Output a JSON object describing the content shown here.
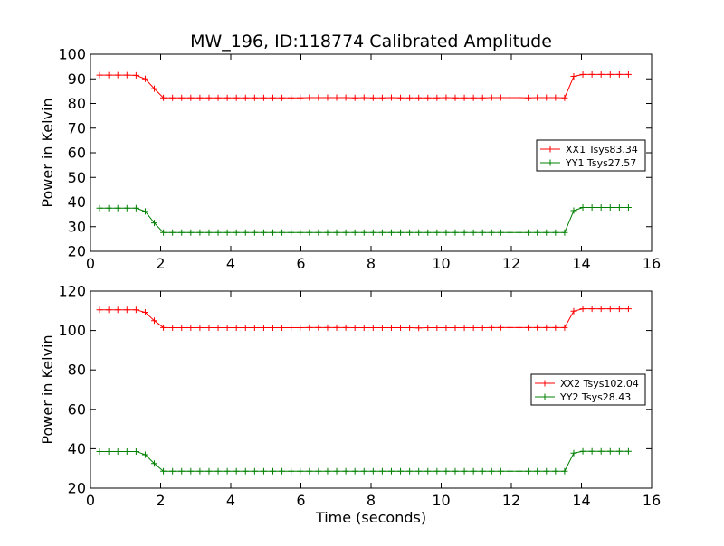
{
  "figure": {
    "title": "MW_196, ID:118774 Calibrated Amplitude"
  },
  "chart_data": [
    {
      "type": "line",
      "title": "MW_196, ID:118774 Calibrated Amplitude",
      "xlabel": "",
      "ylabel": "Power in Kelvin",
      "xlim": [
        0,
        16
      ],
      "ylim": [
        20,
        100
      ],
      "xticks": [
        "0",
        "2",
        "4",
        "6",
        "8",
        "10",
        "12",
        "14",
        "16"
      ],
      "yticks": [
        "20",
        "30",
        "40",
        "50",
        "60",
        "70",
        "80",
        "90",
        "100"
      ],
      "grid": false,
      "legend": "center-right",
      "marker": "plus",
      "x": [
        0.26,
        0.52,
        0.78,
        1.04,
        1.3,
        1.56,
        1.82,
        2.08,
        2.34,
        2.6,
        2.86,
        3.12,
        3.38,
        3.64,
        3.9,
        4.16,
        4.42,
        4.68,
        4.94,
        5.2,
        5.46,
        5.72,
        5.98,
        6.24,
        6.5,
        6.76,
        7.02,
        7.28,
        7.54,
        7.8,
        8.06,
        8.32,
        8.58,
        8.84,
        9.1,
        9.36,
        9.62,
        9.88,
        10.14,
        10.4,
        10.66,
        10.92,
        11.18,
        11.44,
        11.7,
        11.96,
        12.22,
        12.48,
        12.74,
        13.0,
        13.26,
        13.52,
        13.78,
        14.04,
        14.3,
        14.56,
        14.82,
        15.08,
        15.34
      ],
      "series": [
        {
          "name": "XX1 Tsys83.34",
          "color": "#ff0000",
          "values": [
            91.5,
            91.5,
            91.5,
            91.5,
            91.4,
            90.0,
            86.0,
            82.3,
            82.3,
            82.3,
            82.3,
            82.3,
            82.3,
            82.3,
            82.3,
            82.3,
            82.3,
            82.3,
            82.3,
            82.3,
            82.3,
            82.3,
            82.3,
            82.4,
            82.4,
            82.4,
            82.4,
            82.4,
            82.3,
            82.4,
            82.3,
            82.3,
            82.4,
            82.3,
            82.3,
            82.3,
            82.3,
            82.3,
            82.4,
            82.3,
            82.3,
            82.3,
            82.3,
            82.4,
            82.4,
            82.4,
            82.4,
            82.3,
            82.4,
            82.4,
            82.4,
            82.3,
            91.0,
            91.8,
            91.8,
            91.8,
            91.8,
            91.8,
            91.8
          ]
        },
        {
          "name": "YY1 Tsys27.57",
          "color": "#008000",
          "values": [
            37.5,
            37.5,
            37.5,
            37.5,
            37.5,
            36.2,
            31.5,
            27.6,
            27.6,
            27.6,
            27.6,
            27.6,
            27.6,
            27.6,
            27.6,
            27.6,
            27.6,
            27.6,
            27.6,
            27.6,
            27.6,
            27.6,
            27.6,
            27.6,
            27.6,
            27.6,
            27.6,
            27.6,
            27.6,
            27.6,
            27.6,
            27.6,
            27.6,
            27.6,
            27.6,
            27.6,
            27.6,
            27.6,
            27.6,
            27.6,
            27.6,
            27.6,
            27.6,
            27.6,
            27.6,
            27.6,
            27.6,
            27.6,
            27.6,
            27.6,
            27.6,
            27.6,
            36.5,
            37.8,
            37.8,
            37.8,
            37.8,
            37.8,
            37.8
          ]
        }
      ]
    },
    {
      "type": "line",
      "title": "",
      "xlabel": "Time (seconds)",
      "ylabel": "Power in Kelvin",
      "xlim": [
        0,
        16
      ],
      "ylim": [
        20,
        120
      ],
      "xticks": [
        "0",
        "2",
        "4",
        "6",
        "8",
        "10",
        "12",
        "14",
        "16"
      ],
      "yticks": [
        "20",
        "40",
        "60",
        "80",
        "100",
        "120"
      ],
      "grid": false,
      "legend": "center-right",
      "marker": "plus",
      "x": [
        0.26,
        0.52,
        0.78,
        1.04,
        1.3,
        1.56,
        1.82,
        2.08,
        2.34,
        2.6,
        2.86,
        3.12,
        3.38,
        3.64,
        3.9,
        4.16,
        4.42,
        4.68,
        4.94,
        5.2,
        5.46,
        5.72,
        5.98,
        6.24,
        6.5,
        6.76,
        7.02,
        7.28,
        7.54,
        7.8,
        8.06,
        8.32,
        8.58,
        8.84,
        9.1,
        9.36,
        9.62,
        9.88,
        10.14,
        10.4,
        10.66,
        10.92,
        11.18,
        11.44,
        11.7,
        11.96,
        12.22,
        12.48,
        12.74,
        13.0,
        13.26,
        13.52,
        13.78,
        14.04,
        14.3,
        14.56,
        14.82,
        15.08,
        15.34
      ],
      "series": [
        {
          "name": "XX2 Tsys102.04",
          "color": "#ff0000",
          "values": [
            110.5,
            110.5,
            110.5,
            110.5,
            110.5,
            109.2,
            105.0,
            101.5,
            101.4,
            101.4,
            101.4,
            101.4,
            101.4,
            101.4,
            101.4,
            101.4,
            101.4,
            101.4,
            101.4,
            101.4,
            101.4,
            101.4,
            101.4,
            101.5,
            101.5,
            101.5,
            101.5,
            101.5,
            101.4,
            101.4,
            101.4,
            101.4,
            101.4,
            101.4,
            101.4,
            101.3,
            101.4,
            101.4,
            101.4,
            101.4,
            101.4,
            101.4,
            101.4,
            101.5,
            101.5,
            101.5,
            101.5,
            101.5,
            101.5,
            101.5,
            101.5,
            101.5,
            109.8,
            111.0,
            111.0,
            111.0,
            111.0,
            111.0,
            111.0
          ]
        },
        {
          "name": "YY2 Tsys28.43",
          "color": "#008000",
          "values": [
            38.6,
            38.6,
            38.6,
            38.6,
            38.6,
            37.0,
            32.5,
            28.6,
            28.6,
            28.6,
            28.6,
            28.6,
            28.6,
            28.6,
            28.6,
            28.6,
            28.6,
            28.6,
            28.6,
            28.6,
            28.6,
            28.6,
            28.6,
            28.6,
            28.6,
            28.6,
            28.6,
            28.6,
            28.6,
            28.6,
            28.6,
            28.6,
            28.6,
            28.6,
            28.6,
            28.6,
            28.6,
            28.6,
            28.6,
            28.6,
            28.6,
            28.6,
            28.6,
            28.6,
            28.6,
            28.6,
            28.6,
            28.6,
            28.6,
            28.6,
            28.6,
            28.6,
            37.8,
            38.7,
            38.7,
            38.7,
            38.7,
            38.7,
            38.7
          ]
        }
      ]
    }
  ]
}
